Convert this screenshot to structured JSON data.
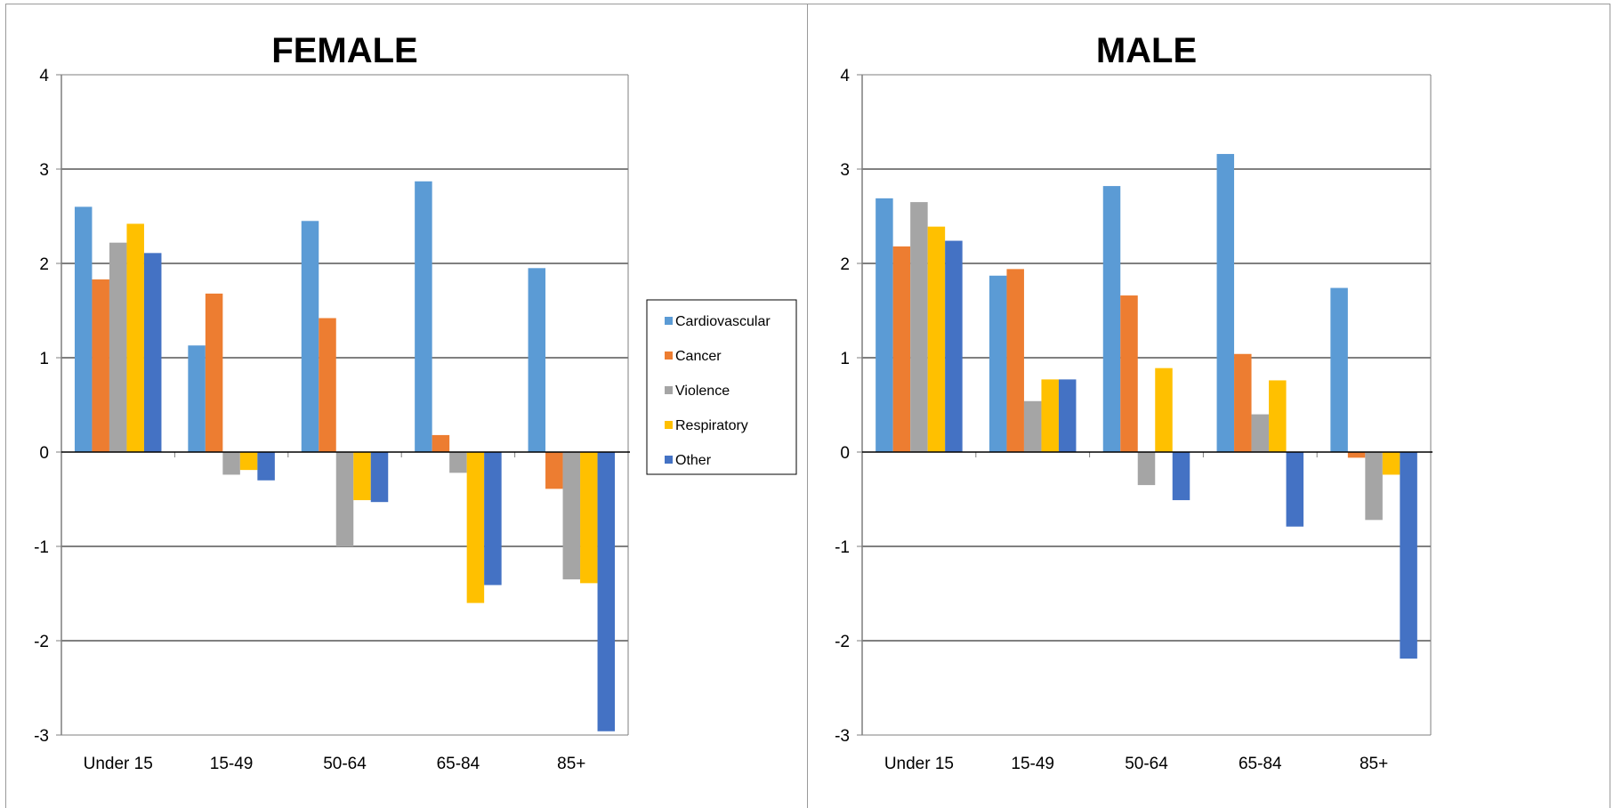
{
  "legend_colors": [
    "#5b9bd5",
    "#ed7d31",
    "#a5a5a5",
    "#ffc000",
    "#4472c4"
  ],
  "chart_data": [
    {
      "type": "bar",
      "title": "FEMALE",
      "categories": [
        "Under 15",
        "15-49",
        "50-64",
        "65-84",
        "85+"
      ],
      "ylim": [
        -3,
        4
      ],
      "yticks": [
        "4",
        "3",
        "2",
        "1",
        "0",
        "-1",
        "-2",
        "-3"
      ],
      "grid": true,
      "legend": "right",
      "series": [
        {
          "name": "Cardiovascular",
          "values": [
            2.6,
            1.13,
            2.45,
            2.87,
            1.95
          ]
        },
        {
          "name": "Cancer",
          "values": [
            1.83,
            1.68,
            1.42,
            0.18,
            -0.39
          ]
        },
        {
          "name": "Violence",
          "values": [
            2.22,
            -0.24,
            -1.0,
            -0.22,
            -1.35
          ]
        },
        {
          "name": "Respiratory",
          "values": [
            2.42,
            -0.19,
            -0.51,
            -1.6,
            -1.39
          ]
        },
        {
          "name": "Other",
          "values": [
            2.11,
            -0.3,
            -0.53,
            -1.41,
            -2.96
          ]
        }
      ]
    },
    {
      "type": "bar",
      "title": "MALE",
      "categories": [
        "Under 15",
        "15-49",
        "50-64",
        "65-84",
        "85+"
      ],
      "ylim": [
        -3,
        4
      ],
      "yticks": [
        "4",
        "3",
        "2",
        "1",
        "0",
        "-1",
        "-2",
        "-3"
      ],
      "grid": true,
      "legend": "none",
      "series": [
        {
          "name": "Cardiovascular",
          "values": [
            2.69,
            1.87,
            2.82,
            3.16,
            1.74
          ]
        },
        {
          "name": "Cancer",
          "values": [
            2.18,
            1.94,
            1.66,
            1.04,
            -0.06
          ]
        },
        {
          "name": "Violence",
          "values": [
            2.65,
            0.54,
            -0.35,
            0.4,
            -0.72
          ]
        },
        {
          "name": "Respiratory",
          "values": [
            2.39,
            0.77,
            0.89,
            0.76,
            -0.24
          ]
        },
        {
          "name": "Other",
          "values": [
            2.24,
            0.77,
            -0.51,
            -0.79,
            -2.19
          ]
        }
      ]
    }
  ]
}
